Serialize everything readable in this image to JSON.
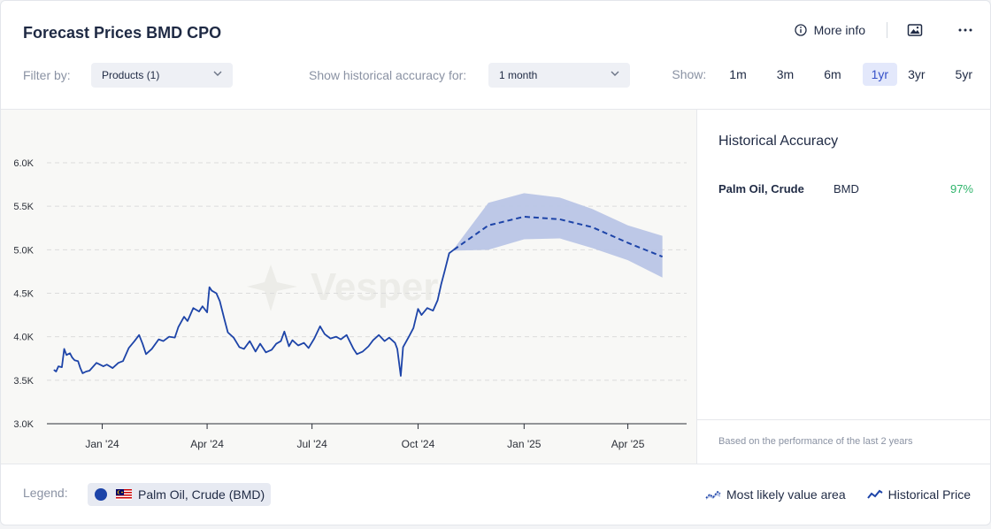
{
  "header": {
    "title": "Forecast Prices BMD CPO",
    "more_info": "More info"
  },
  "filters": {
    "filter_label": "Filter by:",
    "products_value": "Products (1)",
    "accuracy_label": "Show historical accuracy for:",
    "accuracy_value": "1 month",
    "show_label": "Show:",
    "ranges": [
      "1m",
      "3m",
      "6m",
      "1yr",
      "3yr",
      "5yr"
    ],
    "active_range": "1yr"
  },
  "sidebar": {
    "title": "Historical Accuracy",
    "rows": [
      {
        "product": "Palm Oil, Crude",
        "exchange": "BMD",
        "accuracy": "97%"
      }
    ],
    "footnote": "Based on the performance of the last 2 years"
  },
  "legend": {
    "label": "Legend:",
    "series_name": "Palm Oil, Crude (BMD)",
    "forecast_area": "Most likely value area",
    "historical": "Historical Price"
  },
  "colors": {
    "historical_line": "#1d44a8",
    "forecast_line": "#1d44a8",
    "forecast_band": "#b9c5e6",
    "accuracy_good": "#2fb46b",
    "active_range_bg": "#e3e8fb"
  },
  "watermark": "Vesper",
  "chart_data": {
    "type": "line",
    "x_axis": {
      "ticks": [
        "Jan '24",
        "Apr '24",
        "Jul '24",
        "Oct '24",
        "Jan '25",
        "Apr '25"
      ]
    },
    "y_axis": {
      "ticks": [
        "3.0K",
        "3.5K",
        "4.0K",
        "4.5K",
        "5.0K",
        "5.5K",
        "6.0K"
      ],
      "ylim": [
        3000,
        6000
      ]
    },
    "grid": "horizontal dashed",
    "series": [
      {
        "name": "Historical Price",
        "kind": "historical",
        "points": [
          [
            "2023-11-20",
            3620
          ],
          [
            "2023-11-22",
            3600
          ],
          [
            "2023-11-24",
            3660
          ],
          [
            "2023-11-27",
            3650
          ],
          [
            "2023-11-29",
            3860
          ],
          [
            "2023-12-01",
            3790
          ],
          [
            "2023-12-04",
            3810
          ],
          [
            "2023-12-06",
            3760
          ],
          [
            "2023-12-08",
            3730
          ],
          [
            "2023-12-11",
            3720
          ],
          [
            "2023-12-13",
            3640
          ],
          [
            "2023-12-15",
            3580
          ],
          [
            "2023-12-18",
            3600
          ],
          [
            "2023-12-21",
            3610
          ],
          [
            "2023-12-27",
            3700
          ],
          [
            "2024-01-02",
            3660
          ],
          [
            "2024-01-05",
            3680
          ],
          [
            "2024-01-10",
            3640
          ],
          [
            "2024-01-15",
            3700
          ],
          [
            "2024-01-19",
            3720
          ],
          [
            "2024-01-24",
            3870
          ],
          [
            "2024-01-29",
            3950
          ],
          [
            "2024-02-02",
            4020
          ],
          [
            "2024-02-05",
            3920
          ],
          [
            "2024-02-08",
            3800
          ],
          [
            "2024-02-13",
            3860
          ],
          [
            "2024-02-19",
            3970
          ],
          [
            "2024-02-23",
            3950
          ],
          [
            "2024-02-28",
            4000
          ],
          [
            "2024-03-04",
            3990
          ],
          [
            "2024-03-07",
            4110
          ],
          [
            "2024-03-12",
            4230
          ],
          [
            "2024-03-15",
            4180
          ],
          [
            "2024-03-20",
            4330
          ],
          [
            "2024-03-25",
            4290
          ],
          [
            "2024-03-28",
            4350
          ],
          [
            "2024-04-01",
            4280
          ],
          [
            "2024-04-03",
            4570
          ],
          [
            "2024-04-05",
            4530
          ],
          [
            "2024-04-09",
            4500
          ],
          [
            "2024-04-12",
            4410
          ],
          [
            "2024-04-16",
            4200
          ],
          [
            "2024-04-19",
            4050
          ],
          [
            "2024-04-24",
            3990
          ],
          [
            "2024-04-29",
            3880
          ],
          [
            "2024-05-03",
            3860
          ],
          [
            "2024-05-08",
            3950
          ],
          [
            "2024-05-13",
            3830
          ],
          [
            "2024-05-17",
            3920
          ],
          [
            "2024-05-22",
            3820
          ],
          [
            "2024-05-27",
            3850
          ],
          [
            "2024-05-31",
            3920
          ],
          [
            "2024-06-04",
            3950
          ],
          [
            "2024-06-07",
            4060
          ],
          [
            "2024-06-11",
            3890
          ],
          [
            "2024-06-14",
            3960
          ],
          [
            "2024-06-19",
            3900
          ],
          [
            "2024-06-24",
            3930
          ],
          [
            "2024-06-28",
            3870
          ],
          [
            "2024-07-03",
            3980
          ],
          [
            "2024-07-08",
            4120
          ],
          [
            "2024-07-12",
            4030
          ],
          [
            "2024-07-17",
            3980
          ],
          [
            "2024-07-22",
            4000
          ],
          [
            "2024-07-26",
            3970
          ],
          [
            "2024-07-31",
            4020
          ],
          [
            "2024-08-06",
            3860
          ],
          [
            "2024-08-09",
            3800
          ],
          [
            "2024-08-14",
            3830
          ],
          [
            "2024-08-19",
            3890
          ],
          [
            "2024-08-23",
            3960
          ],
          [
            "2024-08-28",
            4020
          ],
          [
            "2024-09-02",
            3950
          ],
          [
            "2024-09-06",
            3990
          ],
          [
            "2024-09-11",
            3930
          ],
          [
            "2024-09-13",
            3860
          ],
          [
            "2024-09-16",
            3550
          ],
          [
            "2024-09-18",
            3880
          ],
          [
            "2024-09-23",
            4000
          ],
          [
            "2024-09-27",
            4100
          ],
          [
            "2024-10-01",
            4320
          ],
          [
            "2024-10-04",
            4250
          ],
          [
            "2024-10-09",
            4330
          ],
          [
            "2024-10-14",
            4300
          ],
          [
            "2024-10-18",
            4420
          ],
          [
            "2024-10-21",
            4600
          ],
          [
            "2024-10-24",
            4750
          ],
          [
            "2024-10-28",
            4960
          ],
          [
            "2024-11-01",
            5000
          ]
        ]
      },
      {
        "name": "Forecast",
        "kind": "forecast",
        "points": [
          [
            "2024-11-01",
            5000,
            4990,
            5010
          ],
          [
            "2024-12-01",
            5280,
            5000,
            5540
          ],
          [
            "2025-01-01",
            5380,
            5120,
            5650
          ],
          [
            "2025-02-01",
            5350,
            5130,
            5600
          ],
          [
            "2025-03-01",
            5260,
            5020,
            5470
          ],
          [
            "2025-04-01",
            5080,
            4880,
            5280
          ],
          [
            "2025-05-01",
            4920,
            4680,
            5160
          ]
        ]
      }
    ]
  }
}
